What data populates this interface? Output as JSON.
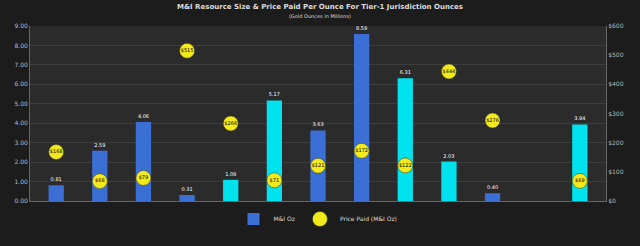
{
  "chart_data": {
    "type": "bar",
    "title": "M&I Resource Size & Price Paid Per Ounce For Tier-1 Jurisdiction Ounces",
    "subtitle": "(Gold Ounces in Millions)",
    "categories": [
      null,
      null,
      null,
      null,
      null,
      null,
      null,
      null,
      null,
      null,
      null,
      null,
      null
    ],
    "series": [
      {
        "name": "M&I Oz",
        "type": "bar",
        "axis": "y",
        "colors": [
          "#3c6fd6",
          "#3c6fd6",
          "#3c6fd6",
          "#3c6fd6",
          "#00e3ee",
          "#00e3ee",
          "#3c6fd6",
          "#3c6fd6",
          "#00e3ee",
          "#00e3ee",
          "#3c6fd6",
          null,
          "#00e3ee"
        ],
        "values": [
          0.81,
          2.59,
          4.06,
          0.31,
          1.09,
          5.17,
          3.63,
          8.59,
          6.31,
          2.03,
          0.4,
          null,
          3.94
        ],
        "value_labels": [
          "0.81",
          "2.59",
          "4.06",
          "0.31",
          "1.09",
          "5.17",
          "3.63",
          "8.59",
          "6.31",
          "2.03",
          "0.40",
          null,
          "3.94"
        ]
      },
      {
        "name": "Price Paid (M&I Oz)",
        "type": "scatter",
        "axis": "y2",
        "marker": "circle",
        "color": "#f2ea1a",
        "values": [
          168,
          68,
          79,
          515,
          266,
          71,
          121,
          172,
          122,
          444,
          276,
          null,
          69
        ],
        "value_labels": [
          "$168",
          "$68",
          "$79",
          "$515",
          "$266",
          "$71",
          "$121",
          "$172",
          "$122",
          "$444",
          "$276",
          null,
          "$69"
        ]
      }
    ],
    "ylim": [
      0,
      9
    ],
    "yticks": [
      {
        "value": 0,
        "label": "0.00"
      },
      {
        "value": 1,
        "label": "1.00"
      },
      {
        "value": 2,
        "label": "2.00"
      },
      {
        "value": 3,
        "label": "3.00"
      },
      {
        "value": 4,
        "label": "4.00"
      },
      {
        "value": 5,
        "label": "5.00"
      },
      {
        "value": 6,
        "label": "6.00"
      },
      {
        "value": 7,
        "label": "7.00"
      },
      {
        "value": 8,
        "label": "8.00"
      },
      {
        "value": 9,
        "label": "9.00"
      }
    ],
    "y2lim": [
      0,
      600
    ],
    "y2ticks": [
      {
        "value": 0,
        "label": "$0"
      },
      {
        "value": 100,
        "label": "$100"
      },
      {
        "value": 200,
        "label": "$200"
      },
      {
        "value": 300,
        "label": "$300"
      },
      {
        "value": 400,
        "label": "$400"
      },
      {
        "value": 500,
        "label": "$500"
      },
      {
        "value": 600,
        "label": "$600"
      }
    ],
    "grid": true,
    "legend": "bottom",
    "data_labels": true
  }
}
